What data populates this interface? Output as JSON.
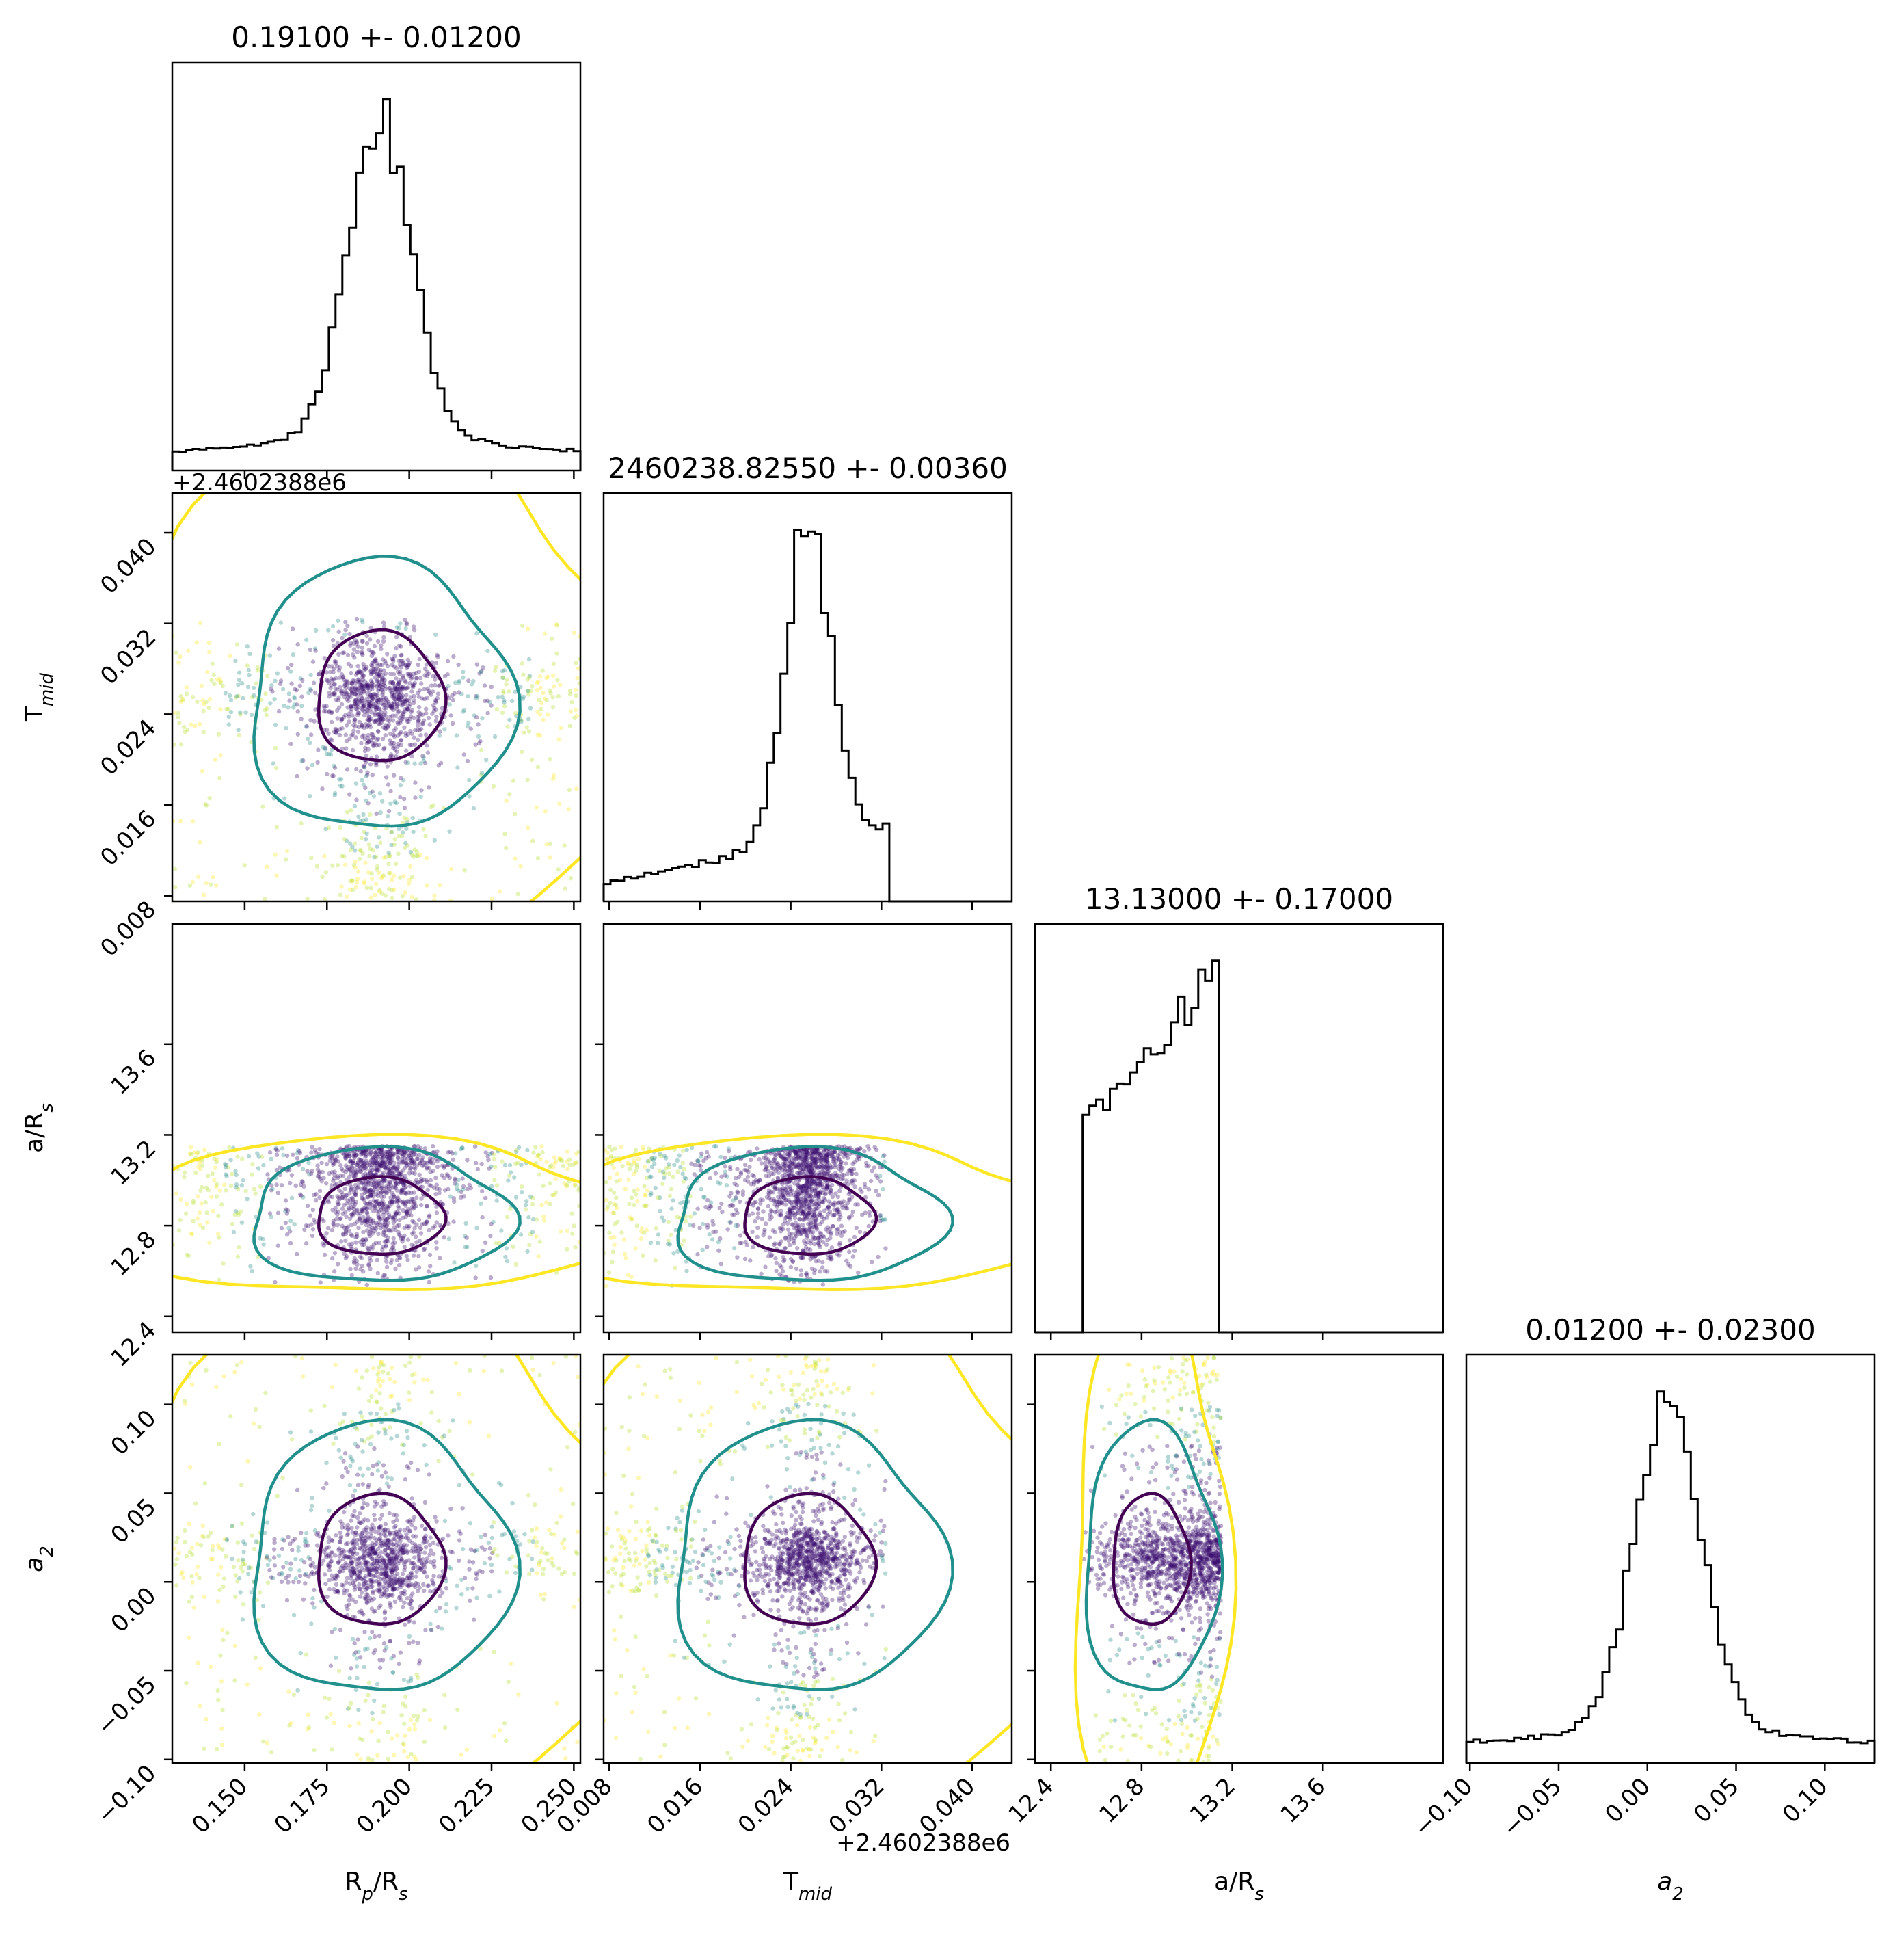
{
  "chart_data": {
    "type": "corner",
    "parameters": [
      {
        "label": "R",
        "label_sub": "p",
        "label_tail": "/R",
        "label_tail_sub": "s",
        "range": [
          0.128,
          0.252
        ],
        "ticks": [
          0.15,
          0.175,
          0.2,
          0.225,
          0.25
        ],
        "tick_labels": [
          "0.150",
          "0.175",
          "0.200",
          "0.225",
          "0.250"
        ],
        "title": "0.19100 +- 0.01200",
        "mean": 0.191,
        "sigma": 0.012
      },
      {
        "label": "T",
        "label_sub": "mid",
        "label_tail": "",
        "label_tail_sub": "",
        "range": [
          0.0075,
          0.0435
        ],
        "ticks": [
          0.008,
          0.016,
          0.024,
          0.032,
          0.04
        ],
        "tick_labels": [
          "0.008",
          "0.016",
          "0.024",
          "0.032",
          "0.040"
        ],
        "title": "2460238.82550 +- 0.00360",
        "offset": "+2.4602388e6",
        "mean": 0.0255,
        "sigma": 0.0036
      },
      {
        "label": "a/R",
        "label_sub": "s",
        "label_tail": "",
        "label_tail_sub": "",
        "range": [
          12.33,
          14.13
        ],
        "ticks": [
          12.4,
          12.8,
          13.2,
          13.6
        ],
        "tick_labels": [
          "12.4",
          "12.8",
          "13.2",
          "13.6"
        ],
        "title": "13.13000 +- 0.17000",
        "mean": 13.13,
        "sigma": 0.17
      },
      {
        "label": "a",
        "label_sub": "2",
        "label_tail": "",
        "label_tail_sub": "",
        "label_italic": true,
        "range": [
          -0.102,
          0.128
        ],
        "ticks": [
          -0.1,
          -0.05,
          0.0,
          0.05,
          0.1
        ],
        "tick_labels": [
          "−0.10",
          "−0.05",
          "0.00",
          "0.05",
          "0.10"
        ],
        "title": "0.01200 +- 0.02300",
        "mean": 0.012,
        "sigma": 0.023
      }
    ],
    "histograms": [
      {
        "param": 0,
        "peak": 0.191,
        "description_values": [
          0.128,
          0.15,
          0.175,
          0.185,
          0.191,
          0.197,
          0.21,
          0.23,
          0.252
        ]
      },
      {
        "param": 1,
        "peak": 0.0255,
        "hard_limit": 0.0324
      },
      {
        "param": 2,
        "low_edge": 12.53,
        "high_edge": 13.15
      },
      {
        "param": 3,
        "peak": 0.012
      }
    ],
    "colors": {
      "hist": "#000000",
      "inner_contour": "#440154",
      "mid_contour": "#21908d",
      "outer_contour": "#fde725",
      "points_dark": "#3b0f70",
      "points_mid": "#2c8e8c",
      "points_light": "#b5de2b",
      "points_yellow": "#fde725"
    }
  }
}
